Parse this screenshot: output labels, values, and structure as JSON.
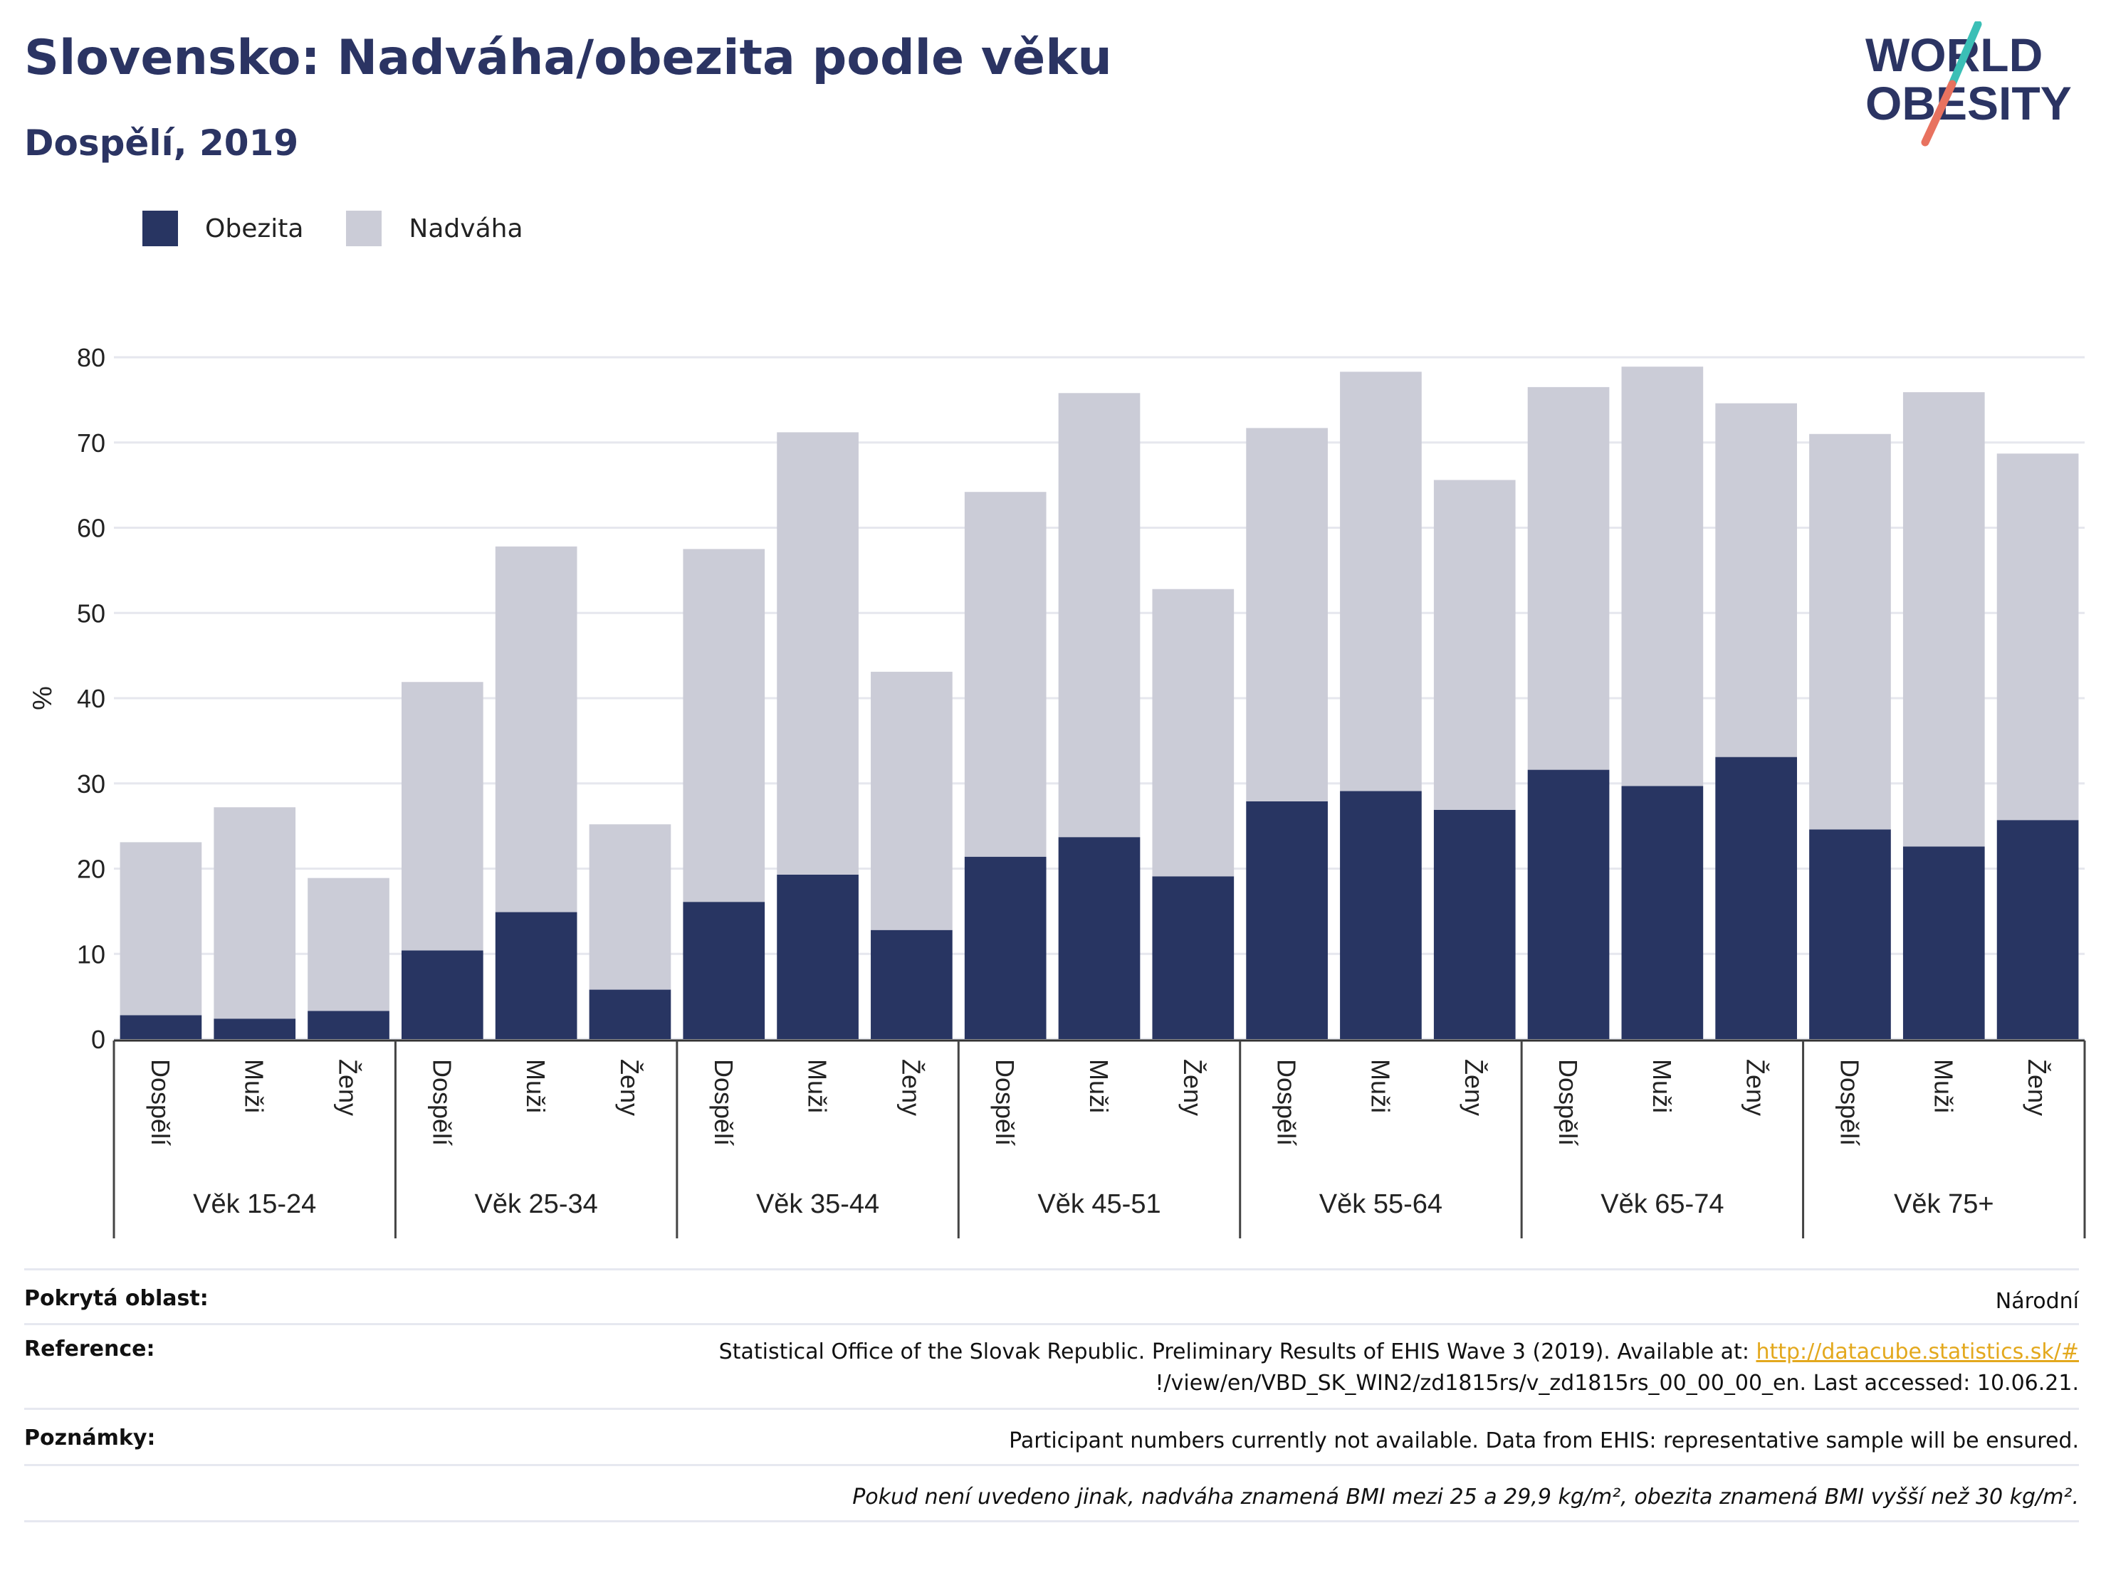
{
  "header": {
    "title": "Slovensko: Nadváha/obezita podle věku",
    "subtitle": "Dospělí, 2019",
    "logo_line1": "WORLD",
    "logo_line2": "OBESITY"
  },
  "colors": {
    "obesity": "#283562",
    "overweight": "#cbccd7",
    "title": "#2b3463",
    "logo_teal": "#3bbfb6",
    "logo_coral": "#e8725f",
    "link": "#e3a81d"
  },
  "legend": [
    {
      "label": "Obezita",
      "color": "#283562"
    },
    {
      "label": "Nadváha",
      "color": "#cbccd7"
    }
  ],
  "chart_data": {
    "type": "bar",
    "stacked": true,
    "ylabel": "%",
    "ylim": [
      0,
      80
    ],
    "yticks": [
      0,
      10,
      20,
      30,
      40,
      50,
      60,
      70,
      80
    ],
    "grid": true,
    "legend_position": "top-left",
    "groups": [
      "Věk 15-24",
      "Věk 25-34",
      "Věk 35-44",
      "Věk 45-51",
      "Věk 55-64",
      "Věk 65-74",
      "Věk 75+"
    ],
    "subcategories": [
      "Dospělí",
      "Muži",
      "Ženy"
    ],
    "series": [
      {
        "name": "Obezita",
        "values": [
          2.8,
          2.4,
          3.3,
          10.4,
          14.9,
          5.8,
          16.1,
          19.3,
          12.8,
          21.4,
          23.7,
          19.1,
          27.9,
          29.1,
          26.9,
          31.6,
          29.7,
          33.1,
          24.6,
          22.6,
          25.7
        ]
      },
      {
        "name": "Nadváha",
        "values": [
          20.3,
          24.8,
          15.6,
          31.5,
          42.9,
          19.4,
          41.4,
          51.9,
          30.3,
          42.8,
          52.1,
          33.7,
          43.8,
          49.2,
          38.7,
          44.9,
          49.2,
          41.5,
          46.4,
          53.3,
          43.0
        ]
      }
    ]
  },
  "footer": {
    "coverage_label": "Pokrytá oblast:",
    "coverage_value": "Národní",
    "reference_label": "Reference:",
    "reference_text1": "Statistical Office of the Slovak Republic. Preliminary Results of EHIS Wave 3 (2019). Available at: ",
    "reference_link": "http://datacube.statistics.sk/#",
    "reference_text2": "!/view/en/VBD_SK_WIN2/zd1815rs/v_zd1815rs_00_00_00_en. Last accessed: 10.06.21.",
    "notes_label": "Poznámky:",
    "notes_value": "Participant numbers currently not available. Data from EHIS: representative sample will be ensured.",
    "definition": "Pokud není uvedeno jinak, nadváha znamená BMI mezi 25 a 29,9 kg/m², obezita znamená BMI vyšší než 30 kg/m²."
  }
}
